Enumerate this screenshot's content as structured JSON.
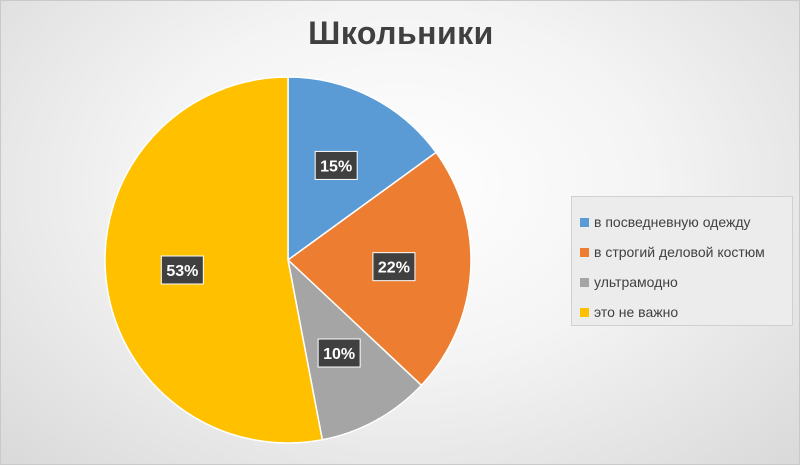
{
  "chart_data": {
    "type": "pie",
    "title": "Школьники",
    "categories": [
      "в посведневную одежду",
      "в строгий деловой костюм",
      "ультрамодно",
      "это не важно"
    ],
    "values": [
      15,
      22,
      10,
      53
    ],
    "data_labels": [
      "15%",
      "22%",
      "10%",
      "53%"
    ],
    "colors": [
      "#5B9BD5",
      "#ED7D31",
      "#A5A5A5",
      "#FFC000"
    ],
    "legend_position": "right"
  }
}
